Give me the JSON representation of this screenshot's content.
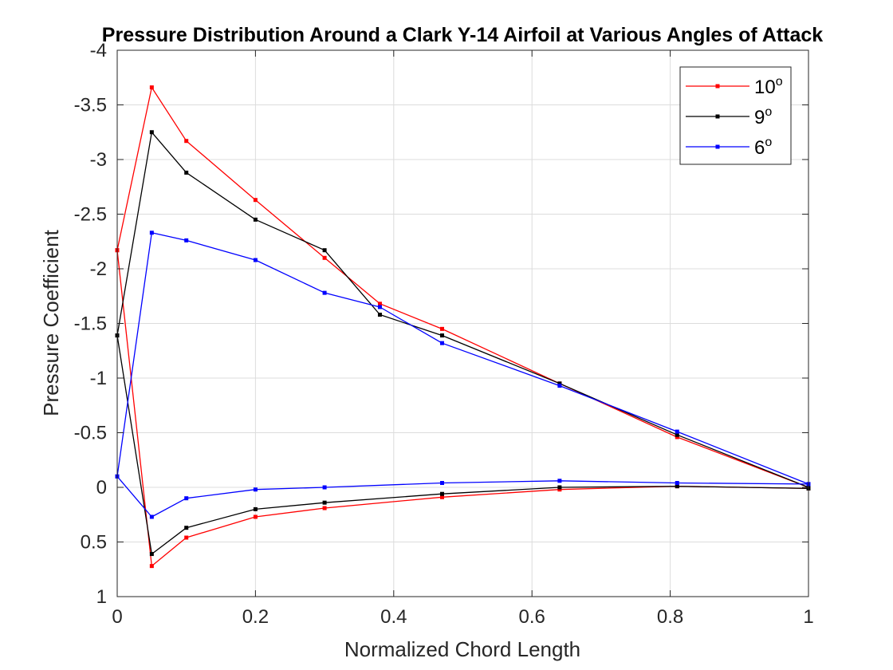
{
  "chart_data": {
    "type": "line",
    "title": "Pressure Distribution Around a Clark Y-14 Airfoil at Various Angles of Attack",
    "xlabel": "Normalized Chord Length",
    "ylabel": "Pressure Coefficient",
    "xlim": [
      0,
      1
    ],
    "ylim": [
      -4,
      1
    ],
    "y_reversed": true,
    "grid": true,
    "legend_position": "top-right",
    "x_ticks": [
      "0",
      "0.2",
      "0.4",
      "0.6",
      "0.8",
      "1"
    ],
    "x_tick_values": [
      0,
      0.2,
      0.4,
      0.6,
      0.8,
      1
    ],
    "y_ticks": [
      "-4",
      "-3.5",
      "-3",
      "-2.5",
      "-2",
      "-1.5",
      "-1",
      "-0.5",
      "0",
      "0.5",
      "1"
    ],
    "y_tick_values": [
      -4,
      -3.5,
      -3,
      -2.5,
      -2,
      -1.5,
      -1,
      -0.5,
      0,
      0.5,
      1
    ],
    "series": [
      {
        "name": "10",
        "name_superscript": "o",
        "color": "#ff0000",
        "x": [
          0,
          0.05,
          0.1,
          0.2,
          0.3,
          0.38,
          0.47,
          0.64,
          0.81,
          1,
          1,
          0.81,
          0.64,
          0.47,
          0.3,
          0.2,
          0.1,
          0.05,
          0
        ],
        "y": [
          -2.17,
          -3.66,
          -3.17,
          -2.63,
          -2.1,
          -1.68,
          -1.45,
          -0.95,
          -0.46,
          0.0,
          0.01,
          -0.01,
          0.02,
          0.09,
          0.19,
          0.27,
          0.46,
          0.72,
          -2.17
        ]
      },
      {
        "name": "9",
        "name_superscript": "o",
        "color": "#000000",
        "x": [
          0,
          0.05,
          0.1,
          0.2,
          0.3,
          0.38,
          0.47,
          0.64,
          0.81,
          1,
          1,
          0.81,
          0.64,
          0.47,
          0.3,
          0.2,
          0.1,
          0.05,
          0
        ],
        "y": [
          -1.39,
          -3.25,
          -2.88,
          -2.45,
          -2.17,
          -1.58,
          -1.39,
          -0.95,
          -0.48,
          0.0,
          0.01,
          -0.01,
          0.0,
          0.06,
          0.14,
          0.2,
          0.37,
          0.61,
          -1.39
        ]
      },
      {
        "name": "6",
        "name_superscript": "o",
        "color": "#0000ff",
        "x": [
          0,
          0.05,
          0.1,
          0.2,
          0.3,
          0.38,
          0.47,
          0.64,
          0.81,
          1,
          1,
          0.81,
          0.64,
          0.47,
          0.3,
          0.2,
          0.1,
          0.05,
          0
        ],
        "y": [
          -0.1,
          -2.33,
          -2.26,
          -2.08,
          -1.78,
          -1.65,
          -1.32,
          -0.93,
          -0.51,
          -0.03,
          -0.03,
          -0.04,
          -0.06,
          -0.04,
          0.0,
          0.02,
          0.1,
          0.27,
          -0.1
        ]
      }
    ]
  }
}
